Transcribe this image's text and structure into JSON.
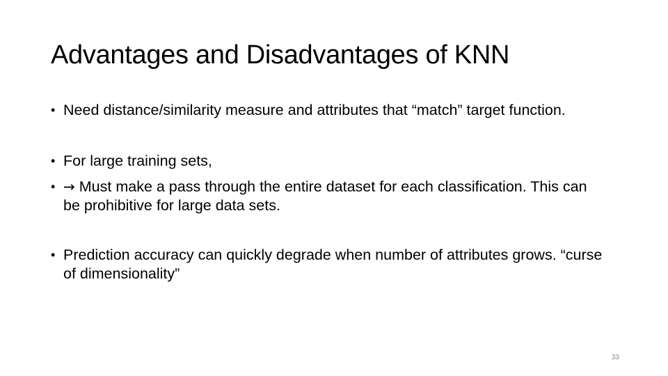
{
  "slide": {
    "title": "Advantages and Disadvantages of KNN",
    "bullets": [
      {
        "text": "Need distance/similarity measure and attributes that “match” target function."
      },
      {
        "text": "For large training sets,"
      },
      {
        "arrow": "→",
        "text": "Must make a pass through the entire dataset for each classification.  This can be prohibitive for large data sets."
      },
      {
        "text": "Prediction accuracy can quickly degrade when number of attributes grows. “curse of dimensionality”"
      }
    ],
    "bullet_glyph": "•",
    "page_number": "33"
  }
}
